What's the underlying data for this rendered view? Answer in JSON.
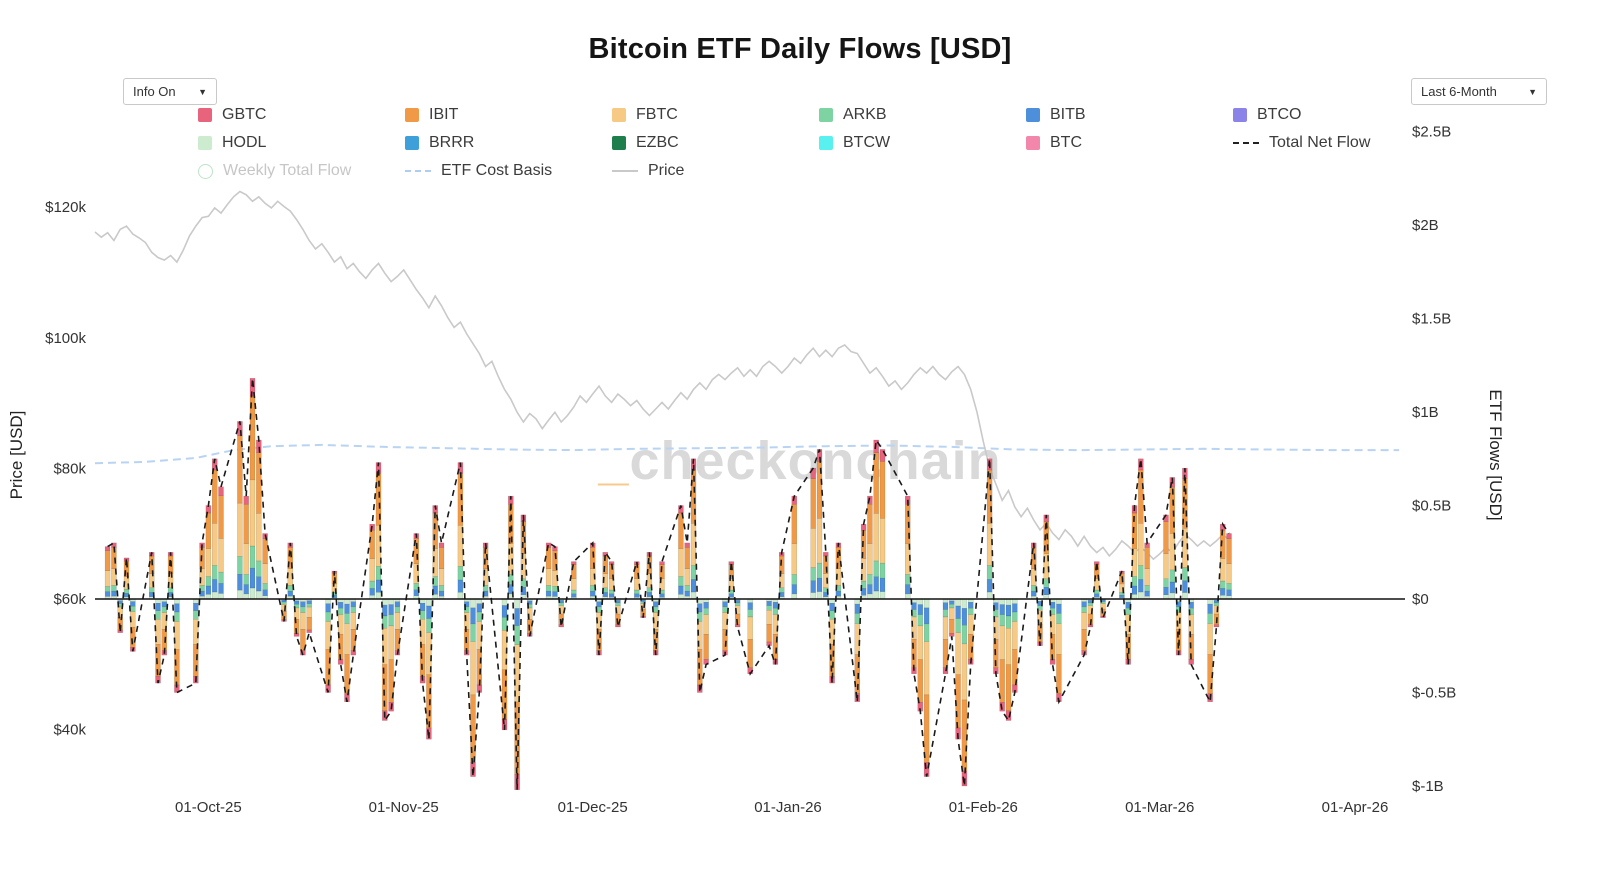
{
  "title": "Bitcoin ETF Daily Flows [USD]",
  "controls": {
    "info_dropdown": {
      "label": "Info On",
      "caret": "▼"
    },
    "range_dropdown": {
      "label": "Last 6-Month",
      "caret": "▼"
    }
  },
  "watermark": {
    "underscore": "_",
    "name": "checkonchain"
  },
  "colors": {
    "GBTC": "#e8637c",
    "IBIT": "#f09a47",
    "FBTC": "#f6c985",
    "ARKB": "#7ed3a2",
    "BITB": "#4d8fdb",
    "BTCO": "#8c83e8",
    "HODL": "#cdeccf",
    "BRRR": "#3f9fd8",
    "EZBC": "#1e7e4c",
    "BTCW": "#58f1ef",
    "BTC": "#f287ab",
    "net_flow": "#1a1a1a",
    "cost_basis": "#b9d4f2",
    "price": "#c9c9c9"
  },
  "legend": {
    "items": [
      {
        "label": "GBTC",
        "swatch": "square",
        "color": "#e8637c",
        "muted": false
      },
      {
        "label": "IBIT",
        "swatch": "square",
        "color": "#f09a47",
        "muted": false
      },
      {
        "label": "FBTC",
        "swatch": "square",
        "color": "#f6c985",
        "muted": false
      },
      {
        "label": "ARKB",
        "swatch": "square",
        "color": "#7ed3a2",
        "muted": false
      },
      {
        "label": "BITB",
        "swatch": "square",
        "color": "#4d8fdb",
        "muted": false
      },
      {
        "label": "BTCO",
        "swatch": "square",
        "color": "#8c83e8",
        "muted": false
      },
      {
        "label": "HODL",
        "swatch": "square",
        "color": "#cdeccf",
        "muted": false
      },
      {
        "label": "BRRR",
        "swatch": "square",
        "color": "#3f9fd8",
        "muted": false
      },
      {
        "label": "EZBC",
        "swatch": "square",
        "color": "#1e7e4c",
        "muted": false
      },
      {
        "label": "BTCW",
        "swatch": "square",
        "color": "#58f1ef",
        "muted": false
      },
      {
        "label": "BTC",
        "swatch": "square",
        "color": "#f287ab",
        "muted": false
      },
      {
        "label": "Total Net Flow",
        "swatch": "dashed",
        "color": "#222222",
        "muted": false
      },
      {
        "label": "Weekly Total Flow",
        "swatch": "circle",
        "color": "#bfe3c9",
        "muted": true
      },
      {
        "label": "ETF Cost Basis",
        "swatch": "dashed",
        "color": "#aecdf0",
        "muted": false
      },
      {
        "label": "Price",
        "swatch": "line",
        "color": "#c9c9c9",
        "muted": false
      }
    ]
  },
  "chart_data": {
    "type": "bar",
    "title": "Bitcoin ETF Daily Flows [USD]",
    "subtitle": "Stacked daily ETF flows with BTC price and ETF cost basis overlays",
    "x_axis": {
      "start_date": "2025-09-13",
      "ticks": [
        {
          "day": 18,
          "label": "01-Oct-25"
        },
        {
          "day": 49,
          "label": "01-Nov-25"
        },
        {
          "day": 79,
          "label": "01-Dec-25"
        },
        {
          "day": 110,
          "label": "01-Jan-26"
        },
        {
          "day": 141,
          "label": "01-Feb-26"
        },
        {
          "day": 169,
          "label": "01-Mar-26"
        },
        {
          "day": 200,
          "label": "01-Apr-26"
        }
      ]
    },
    "price_axis": {
      "label": "Price [USD]",
      "unit": "USD thousands",
      "ticks": [
        {
          "value": 40,
          "label": "$40k"
        },
        {
          "value": 60,
          "label": "$60k"
        },
        {
          "value": 80,
          "label": "$80k"
        },
        {
          "value": 100,
          "label": "$100k"
        },
        {
          "value": 120,
          "label": "$120k"
        }
      ]
    },
    "flow_axis": {
      "label": "ETF Flows [USD]",
      "unit": "USD billions",
      "ticks": [
        {
          "value": -1,
          "label": "$-1B"
        },
        {
          "value": -0.5,
          "label": "$-0.5B"
        },
        {
          "value": 0,
          "label": "$0"
        },
        {
          "value": 0.5,
          "label": "$0.5B"
        },
        {
          "value": 1,
          "label": "$1B"
        },
        {
          "value": 1.5,
          "label": "$1.5B"
        },
        {
          "value": 2,
          "label": "$2B"
        },
        {
          "value": 2.5,
          "label": "$2.5B"
        }
      ]
    },
    "flows": {
      "unit": "USD billions",
      "stack_order": [
        "HODL",
        "BITB",
        "ARKB",
        "FBTC",
        "IBIT",
        "GBTC"
      ],
      "mix": {
        "HODL": 0.05,
        "BITB": 0.09,
        "ARKB": 0.1,
        "FBTC": 0.3,
        "IBIT": 0.38,
        "GBTC": 0.08
      },
      "days": [
        2,
        3,
        4,
        5,
        6,
        9,
        10,
        11,
        12,
        13,
        16,
        17,
        18,
        19,
        20,
        23,
        24,
        25,
        26,
        27,
        30,
        31,
        32,
        33,
        34,
        37,
        38,
        39,
        40,
        41,
        44,
        45,
        46,
        47,
        48,
        51,
        52,
        53,
        54,
        55,
        58,
        59,
        60,
        61,
        62,
        65,
        66,
        67,
        68,
        69,
        72,
        73,
        74,
        76,
        79,
        80,
        81,
        82,
        83,
        86,
        87,
        88,
        89,
        90,
        93,
        94,
        95,
        96,
        97,
        100,
        101,
        102,
        104,
        107,
        108,
        109,
        111,
        114,
        115,
        116,
        117,
        118,
        121,
        122,
        123,
        124,
        125,
        129,
        130,
        131,
        132,
        135,
        136,
        137,
        138,
        139,
        142,
        143,
        144,
        145,
        146,
        149,
        150,
        151,
        152,
        153,
        157,
        158,
        159,
        160,
        163,
        164,
        165,
        166,
        167,
        170,
        171,
        172,
        173,
        174,
        177,
        178,
        179,
        180
      ],
      "totals": [
        0.28,
        0.3,
        -0.18,
        0.22,
        -0.28,
        0.25,
        -0.45,
        -0.3,
        0.25,
        -0.5,
        -0.45,
        0.3,
        0.5,
        0.75,
        0.6,
        0.95,
        0.55,
        1.18,
        0.85,
        0.35,
        -0.12,
        0.3,
        -0.2,
        -0.3,
        -0.18,
        -0.5,
        0.15,
        -0.35,
        -0.55,
        -0.3,
        0.4,
        0.73,
        -0.65,
        -0.6,
        -0.3,
        0.35,
        -0.45,
        -0.75,
        0.5,
        0.3,
        0.73,
        -0.3,
        -0.95,
        -0.5,
        0.3,
        -0.7,
        0.55,
        -1.02,
        0.45,
        -0.2,
        0.3,
        0.28,
        -0.15,
        0.2,
        0.3,
        -0.3,
        0.25,
        0.2,
        -0.15,
        0.2,
        -0.1,
        0.25,
        -0.3,
        0.2,
        0.5,
        0.3,
        0.75,
        -0.5,
        -0.35,
        -0.3,
        0.2,
        -0.15,
        -0.4,
        -0.25,
        -0.35,
        0.25,
        0.55,
        0.7,
        0.8,
        0.25,
        -0.45,
        0.3,
        -0.55,
        0.4,
        0.55,
        0.85,
        0.8,
        0.55,
        -0.4,
        -0.6,
        -0.95,
        -0.4,
        -0.2,
        -0.75,
        -1.0,
        -0.35,
        0.75,
        -0.4,
        -0.6,
        -0.65,
        -0.5,
        0.3,
        -0.25,
        0.45,
        -0.35,
        -0.55,
        -0.3,
        -0.15,
        0.2,
        -0.1,
        0.15,
        -0.35,
        0.5,
        0.75,
        0.3,
        0.45,
        0.65,
        -0.3,
        0.7,
        -0.35,
        -0.55,
        -0.15,
        0.4,
        0.35
      ]
    },
    "net_flow_line": {
      "name": "Total Net Flow",
      "style": "dashed",
      "color": "#1a1a1a"
    },
    "price_line": {
      "name": "Price",
      "color": "#c9c9c9",
      "start_day": 0,
      "step_days": 1,
      "values_usd_k": [
        116.2,
        115.4,
        116.1,
        114.9,
        116.6,
        117.1,
        115.9,
        115.3,
        114.6,
        113.1,
        112.3,
        111.9,
        112.6,
        111.6,
        113.4,
        115.6,
        117.1,
        118.4,
        118.6,
        119.9,
        119.1,
        120.4,
        121.6,
        122.4,
        121.9,
        120.9,
        121.6,
        120.6,
        119.9,
        120.9,
        120.1,
        119.4,
        118.1,
        116.6,
        114.9,
        113.6,
        114.4,
        113.1,
        111.6,
        112.4,
        110.6,
        111.4,
        110.1,
        109.1,
        110.4,
        111.4,
        109.9,
        108.6,
        109.4,
        110.4,
        108.9,
        107.4,
        106.1,
        104.6,
        106.4,
        104.9,
        103.1,
        101.6,
        102.4,
        100.6,
        99.1,
        97.6,
        95.6,
        96.4,
        94.1,
        92.1,
        90.6,
        88.6,
        87.1,
        88.4,
        87.6,
        86.1,
        87.4,
        88.6,
        87.1,
        88.1,
        89.4,
        91.1,
        90.1,
        91.4,
        92.6,
        91.1,
        90.1,
        91.4,
        90.6,
        89.6,
        90.4,
        89.1,
        88.1,
        89.1,
        90.1,
        89.1,
        90.4,
        91.6,
        90.6,
        92.1,
        93.1,
        92.1,
        93.6,
        94.4,
        93.6,
        94.6,
        95.4,
        94.1,
        95.1,
        94.1,
        95.6,
        96.4,
        95.6,
        94.6,
        95.6,
        96.9,
        96.1,
        97.4,
        98.4,
        97.1,
        98.1,
        97.1,
        98.4,
        98.9,
        97.9,
        97.6,
        96.1,
        94.6,
        95.4,
        94.1,
        92.6,
        93.4,
        92.1,
        93.1,
        94.4,
        95.4,
        94.6,
        95.6,
        94.4,
        93.6,
        94.8,
        95.6,
        94.4,
        92.1,
        88.6,
        84.1,
        80.1,
        77.6,
        75.1,
        76.6,
        74.1,
        72.6,
        73.9,
        72.1,
        70.6,
        71.6,
        70.1,
        69.1,
        70.6,
        69.6,
        68.1,
        69.6,
        68.1,
        67.1,
        67.9,
        66.6,
        67.6,
        68.9,
        68.1,
        67.1,
        67.9,
        67.1,
        66.1,
        66.9,
        67.9,
        67.1,
        68.6,
        69.9,
        69.1,
        68.1,
        68.9,
        68.1,
        68.9,
        69.9,
        69.1
      ]
    },
    "cost_basis_line": {
      "name": "ETF Cost Basis",
      "color": "#b9d4f2",
      "style": "dashed",
      "unit": "USD thousands",
      "points": [
        [
          0,
          80.8
        ],
        [
          8,
          81.0
        ],
        [
          16,
          81.6
        ],
        [
          22,
          82.8
        ],
        [
          28,
          83.4
        ],
        [
          36,
          83.6
        ],
        [
          46,
          83.3
        ],
        [
          56,
          83.1
        ],
        [
          66,
          82.9
        ],
        [
          76,
          82.8
        ],
        [
          86,
          83.0
        ],
        [
          96,
          83.1
        ],
        [
          106,
          83.2
        ],
        [
          116,
          83.4
        ],
        [
          126,
          83.5
        ],
        [
          136,
          83.3
        ],
        [
          146,
          82.9
        ],
        [
          156,
          82.8
        ],
        [
          166,
          82.9
        ],
        [
          176,
          83.0
        ],
        [
          186,
          82.9
        ],
        [
          196,
          82.8
        ],
        [
          207,
          82.8
        ]
      ]
    },
    "legend_position": "top",
    "grid": false
  }
}
